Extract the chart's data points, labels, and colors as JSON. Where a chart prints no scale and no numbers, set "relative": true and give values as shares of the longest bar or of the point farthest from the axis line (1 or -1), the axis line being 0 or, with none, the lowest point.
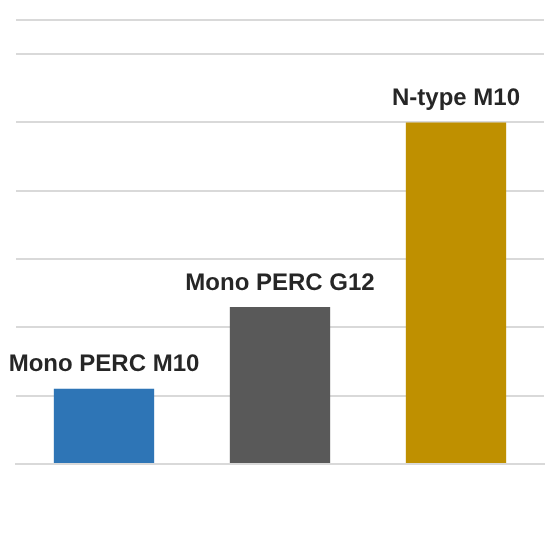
{
  "chart_data": {
    "type": "bar",
    "relative": true,
    "categories": [
      "Mono PERC M10",
      "Mono PERC G12",
      "N-type M10"
    ],
    "values": [
      0.22,
      0.46,
      1
    ],
    "colors": [
      "#2e75b6",
      "#595959",
      "#bf9000"
    ],
    "grid": "y"
  }
}
